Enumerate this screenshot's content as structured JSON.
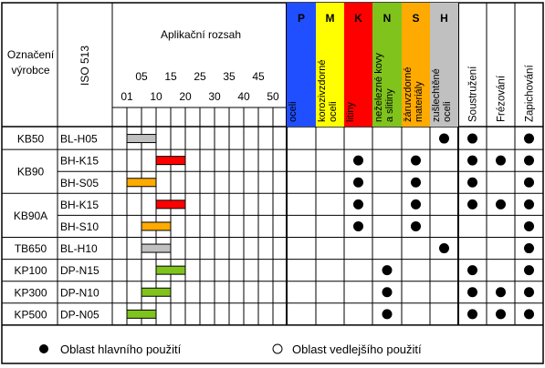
{
  "header": {
    "product_code_label_1": "Označení",
    "product_code_label_2": "výrobce",
    "iso_label": "ISO 513",
    "range_title": "Aplikační rozsah",
    "range_ticks_top": [
      "05",
      "15",
      "25",
      "35",
      "45"
    ],
    "range_ticks_bottom": [
      "01",
      "10",
      "20",
      "30",
      "40",
      "50"
    ],
    "groups": [
      {
        "letter": "P",
        "color": "#1f4fff",
        "text_lines": [
          "oceli"
        ]
      },
      {
        "letter": "M",
        "color": "#ffff00",
        "text_lines": [
          "korozivzdorné",
          "oceli"
        ]
      },
      {
        "letter": "K",
        "color": "#ff0000",
        "text_lines": [
          "litiny"
        ]
      },
      {
        "letter": "N",
        "color": "#7fc31c",
        "text_lines": [
          "neželezné kovy",
          "a slitiny"
        ]
      },
      {
        "letter": "S",
        "color": "#ffaa00",
        "text_lines": [
          "žáruvzdorné",
          "materiály"
        ]
      },
      {
        "letter": "H",
        "color": "#c0c0c0",
        "text_lines": [
          "zušlechtěné",
          "oceli"
        ]
      }
    ],
    "operations": [
      "Soustružení",
      "Frézování",
      "Zapichování"
    ]
  },
  "rows": [
    {
      "product": "KB50",
      "iso": "BL-H05",
      "bar_start": 5,
      "bar_end": 15,
      "bar_color": "#c0c0c0",
      "groups": [
        0,
        0,
        0,
        0,
        0,
        1
      ],
      "ops": [
        1,
        0,
        1
      ]
    },
    {
      "product": "KB90",
      "iso": "BH-K15",
      "bar_start": 15,
      "bar_end": 25,
      "bar_color": "#ff0000",
      "groups": [
        0,
        0,
        1,
        0,
        1,
        0
      ],
      "ops": [
        1,
        1,
        1
      ]
    },
    {
      "product": "",
      "iso": "BH-S05",
      "bar_start": 5,
      "bar_end": 15,
      "bar_color": "#ffaa00",
      "groups": [
        0,
        0,
        1,
        0,
        1,
        0
      ],
      "ops": [
        1,
        0,
        1
      ]
    },
    {
      "product": "KB90A",
      "iso": "BH-K15",
      "bar_start": 15,
      "bar_end": 25,
      "bar_color": "#ff0000",
      "groups": [
        0,
        0,
        1,
        0,
        1,
        0
      ],
      "ops": [
        1,
        1,
        1
      ]
    },
    {
      "product": "",
      "iso": "BH-S10",
      "bar_start": 10,
      "bar_end": 20,
      "bar_color": "#ffaa00",
      "groups": [
        0,
        0,
        1,
        0,
        1,
        0
      ],
      "ops": [
        0,
        0,
        1
      ]
    },
    {
      "product": "TB650",
      "iso": "BL-H10",
      "bar_start": 10,
      "bar_end": 20,
      "bar_color": "#c0c0c0",
      "groups": [
        0,
        0,
        0,
        0,
        0,
        1
      ],
      "ops": [
        0,
        0,
        1
      ]
    },
    {
      "product": "KP100",
      "iso": "DP-N15",
      "bar_start": 15,
      "bar_end": 25,
      "bar_color": "#7fc31c",
      "groups": [
        0,
        0,
        0,
        1,
        0,
        0
      ],
      "ops": [
        1,
        0,
        1
      ]
    },
    {
      "product": "KP300",
      "iso": "DP-N10",
      "bar_start": 10,
      "bar_end": 20,
      "bar_color": "#7fc31c",
      "groups": [
        0,
        0,
        0,
        1,
        0,
        0
      ],
      "ops": [
        1,
        1,
        1
      ]
    },
    {
      "product": "KP500",
      "iso": "DP-N05",
      "bar_start": 5,
      "bar_end": 15,
      "bar_color": "#7fc31c",
      "groups": [
        0,
        0,
        0,
        1,
        0,
        0
      ],
      "ops": [
        1,
        1,
        1
      ]
    }
  ],
  "legend": {
    "primary": "Oblast hlavního použití",
    "secondary": "Oblast vedlejšího použití"
  }
}
